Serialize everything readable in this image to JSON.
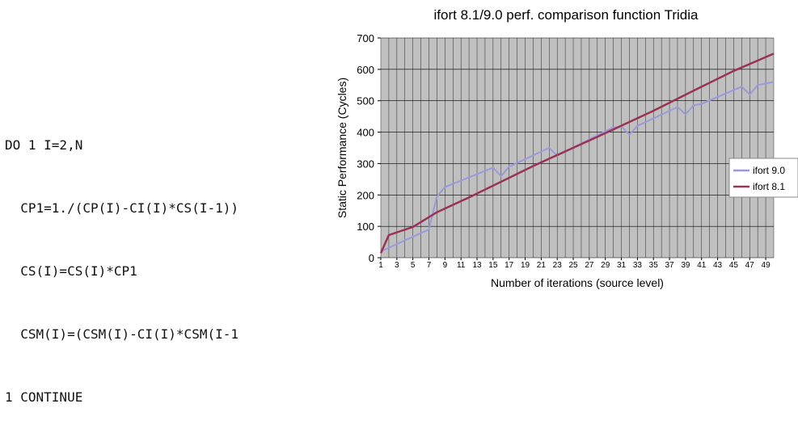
{
  "code": {
    "lines": [
      "DO 1 I=2,N",
      "  CP1=1./(CP(I)-CI(I)*CS(I-1))",
      "  CS(I)=CS(I)*CP1",
      "  CSM(I)=(CSM(I)-CI(I)*CSM(I-1",
      "1 CONTINUE"
    ]
  },
  "chart_data": {
    "type": "line",
    "title": "ifort 8.1/9.0 perf. comparison function Tridia",
    "xlabel": "Number of iterations (source level)",
    "ylabel": "Static Performance (Cycles)",
    "ylim": [
      0,
      700
    ],
    "yticks": [
      0,
      100,
      200,
      300,
      400,
      500,
      600,
      700
    ],
    "xlim": [
      1,
      50
    ],
    "xticks": [
      1,
      3,
      5,
      7,
      9,
      11,
      13,
      15,
      17,
      19,
      21,
      23,
      25,
      27,
      29,
      31,
      33,
      35,
      37,
      39,
      41,
      43,
      45,
      47,
      49
    ],
    "grid": true,
    "legend": "right",
    "series": [
      {
        "name": "ifort 9.0",
        "color": "#9999dd",
        "x": [
          1,
          7,
          8,
          9,
          15,
          16,
          17,
          22,
          23,
          30,
          31,
          32,
          33,
          38,
          39,
          40,
          41,
          46,
          47,
          48,
          49,
          50
        ],
        "y": [
          20,
          90,
          195,
          225,
          287,
          260,
          290,
          350,
          325,
          415,
          418,
          392,
          420,
          480,
          457,
          485,
          490,
          545,
          520,
          550,
          555,
          560
        ]
      },
      {
        "name": "ifort 8.1",
        "color": "#993355",
        "x": [
          1,
          2,
          5,
          8,
          12,
          20,
          28,
          35,
          40,
          45,
          50
        ],
        "y": [
          15,
          72,
          98,
          145,
          192,
          292,
          385,
          468,
          532,
          595,
          650
        ]
      }
    ]
  }
}
